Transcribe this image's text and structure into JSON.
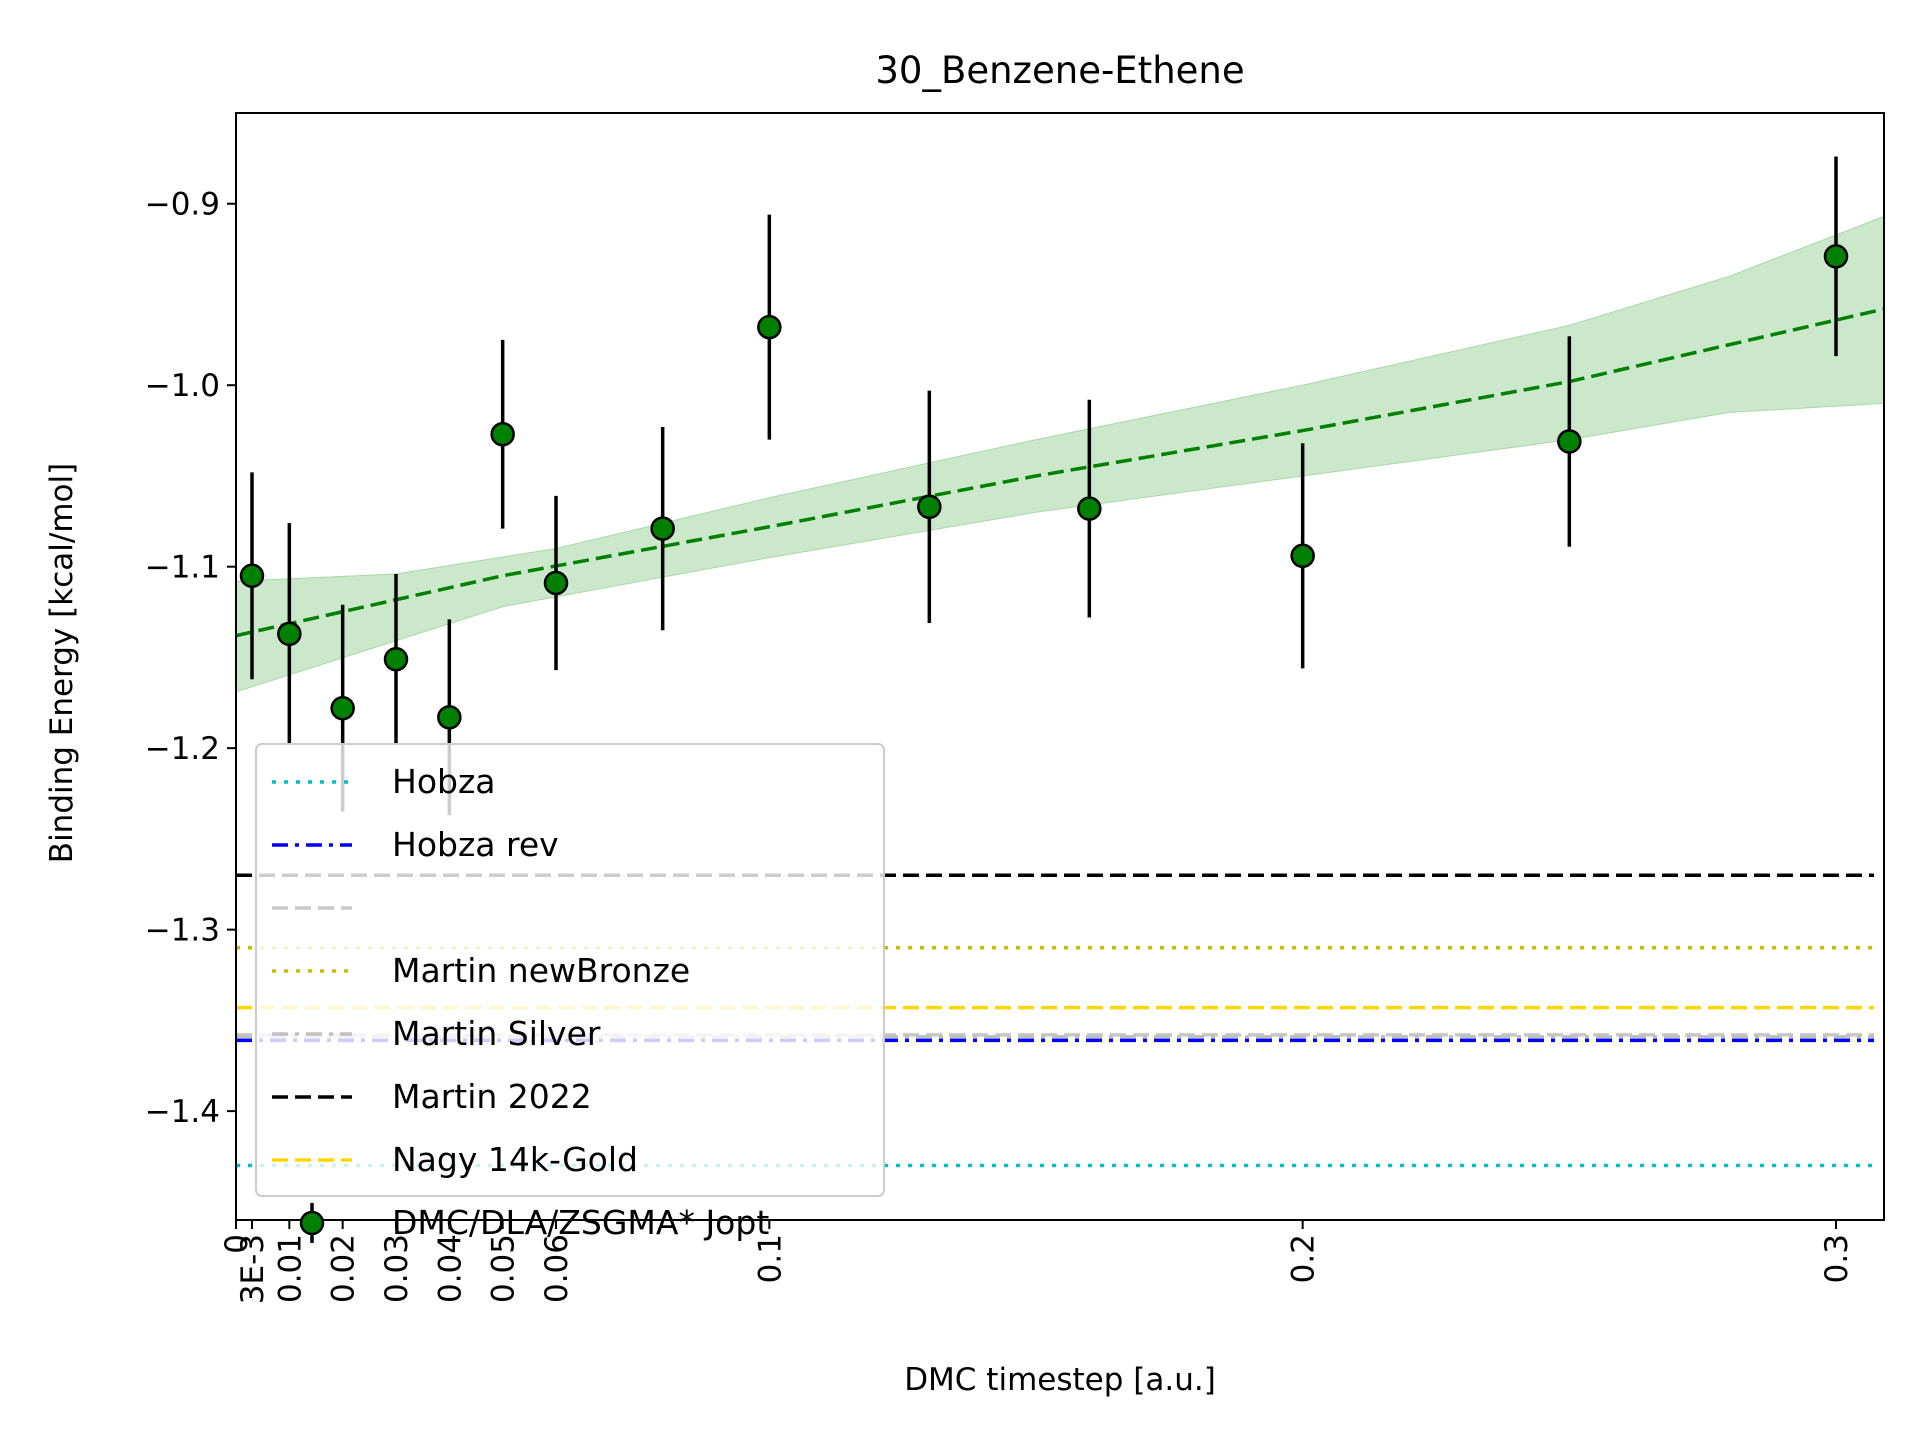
{
  "chart_data": {
    "type": "scatter",
    "title": "30_Benzene-Ethene",
    "xlabel": "DMC timestep [a.u.]",
    "ylabel": "Binding Energy [kcal/mol]",
    "xlim": [
      0,
      0.309
    ],
    "ylim": [
      -1.46,
      -0.85
    ],
    "x_ticks": [
      {
        "value": 0,
        "label": "0"
      },
      {
        "value": 0.003,
        "label": "3E-3"
      },
      {
        "value": 0.01,
        "label": "0.01"
      },
      {
        "value": 0.02,
        "label": "0.02"
      },
      {
        "value": 0.03,
        "label": "0.03"
      },
      {
        "value": 0.04,
        "label": "0.04"
      },
      {
        "value": 0.05,
        "label": "0.05"
      },
      {
        "value": 0.06,
        "label": "0.06"
      },
      {
        "value": 0.1,
        "label": "0.1"
      },
      {
        "value": 0.2,
        "label": "0.2"
      },
      {
        "value": 0.3,
        "label": "0.3"
      }
    ],
    "y_ticks": [
      {
        "value": -0.9,
        "label": "−0.9"
      },
      {
        "value": -1.0,
        "label": "−1.0"
      },
      {
        "value": -1.1,
        "label": "−1.1"
      },
      {
        "value": -1.2,
        "label": "−1.2"
      },
      {
        "value": -1.3,
        "label": "−1.3"
      },
      {
        "value": -1.4,
        "label": "−1.4"
      }
    ],
    "grid": false,
    "legend_position": "lower-left",
    "reference_lines": [
      {
        "name": "Hobza",
        "y": -1.43,
        "color": "#00bfbf",
        "style": "dotted"
      },
      {
        "name": "Hobza rev",
        "y": -1.361,
        "color": "#0000ff",
        "style": "dashdot"
      },
      {
        "name": "",
        "y": -1.358,
        "color": "#c8c8c8",
        "style": "dashed"
      },
      {
        "name": "Martin newBronze",
        "y": -1.31,
        "color": "#bfbf00",
        "style": "dotted"
      },
      {
        "name": "Martin Silver",
        "y": -1.359,
        "color": "#c0c0c0",
        "style": "dashdot"
      },
      {
        "name": "Martin 2022",
        "y": -1.27,
        "color": "#000000",
        "style": "dashed"
      },
      {
        "name": "Nagy 14k-Gold",
        "y": -1.343,
        "color": "#ffd700",
        "style": "dashed"
      }
    ],
    "series": [
      {
        "name": "DMC/DLA/ZSGMA* Jopt",
        "color": "#008000",
        "points": [
          {
            "x": 0.003,
            "y": -1.105,
            "err": 0.057
          },
          {
            "x": 0.01,
            "y": -1.137,
            "err": 0.061
          },
          {
            "x": 0.02,
            "y": -1.178,
            "err": 0.057
          },
          {
            "x": 0.03,
            "y": -1.151,
            "err": 0.047
          },
          {
            "x": 0.04,
            "y": -1.183,
            "err": 0.054
          },
          {
            "x": 0.05,
            "y": -1.027,
            "err": 0.052
          },
          {
            "x": 0.06,
            "y": -1.109,
            "err": 0.048
          },
          {
            "x": 0.08,
            "y": -1.079,
            "err": 0.056
          },
          {
            "x": 0.1,
            "y": -0.968,
            "err": 0.062
          },
          {
            "x": 0.13,
            "y": -1.067,
            "err": 0.064
          },
          {
            "x": 0.16,
            "y": -1.068,
            "err": 0.06
          },
          {
            "x": 0.2,
            "y": -1.094,
            "err": 0.062
          },
          {
            "x": 0.25,
            "y": -1.031,
            "err": 0.058
          },
          {
            "x": 0.3,
            "y": -0.929,
            "err": 0.055
          }
        ]
      }
    ],
    "fit": {
      "color": "#008000",
      "style": "dashed",
      "band_color": "#a9d8a9",
      "points": [
        {
          "x": 0,
          "y": -1.138
        },
        {
          "x": 0.05,
          "y": -1.105
        },
        {
          "x": 0.1,
          "y": -1.078
        },
        {
          "x": 0.15,
          "y": -1.05
        },
        {
          "x": 0.2,
          "y": -1.025
        },
        {
          "x": 0.25,
          "y": -0.998
        },
        {
          "x": 0.309,
          "y": -0.958
        }
      ],
      "band_upper": [
        {
          "x": 0,
          "y": -1.108
        },
        {
          "x": 0.03,
          "y": -1.104
        },
        {
          "x": 0.06,
          "y": -1.09
        },
        {
          "x": 0.1,
          "y": -1.062
        },
        {
          "x": 0.15,
          "y": -1.03
        },
        {
          "x": 0.2,
          "y": -1.0
        },
        {
          "x": 0.25,
          "y": -0.967
        },
        {
          "x": 0.28,
          "y": -0.94
        },
        {
          "x": 0.309,
          "y": -0.907
        }
      ],
      "band_lower": [
        {
          "x": 0,
          "y": -1.169
        },
        {
          "x": 0.05,
          "y": -1.122
        },
        {
          "x": 0.1,
          "y": -1.095
        },
        {
          "x": 0.15,
          "y": -1.07
        },
        {
          "x": 0.2,
          "y": -1.05
        },
        {
          "x": 0.25,
          "y": -1.03
        },
        {
          "x": 0.28,
          "y": -1.015
        },
        {
          "x": 0.309,
          "y": -1.01
        }
      ]
    },
    "legend": [
      {
        "label": "Hobza",
        "kind": "line",
        "color": "#00bfbf",
        "style": "dotted"
      },
      {
        "label": "Hobza rev",
        "kind": "line",
        "color": "#0000ff",
        "style": "dashdot"
      },
      {
        "label": "",
        "kind": "line",
        "color": "#c8c8c8",
        "style": "dashed"
      },
      {
        "label": "Martin newBronze",
        "kind": "line",
        "color": "#bfbf00",
        "style": "dotted"
      },
      {
        "label": "Martin Silver",
        "kind": "line",
        "color": "#c0c0c0",
        "style": "dashdot"
      },
      {
        "label": "Martin 2022",
        "kind": "line",
        "color": "#000000",
        "style": "dashed"
      },
      {
        "label": "Nagy 14k-Gold",
        "kind": "line",
        "color": "#ffd700",
        "style": "dashed"
      },
      {
        "label": "DMC/DLA/ZSGMA* Jopt",
        "kind": "marker",
        "color": "#008000",
        "style": "errorbar"
      }
    ]
  }
}
